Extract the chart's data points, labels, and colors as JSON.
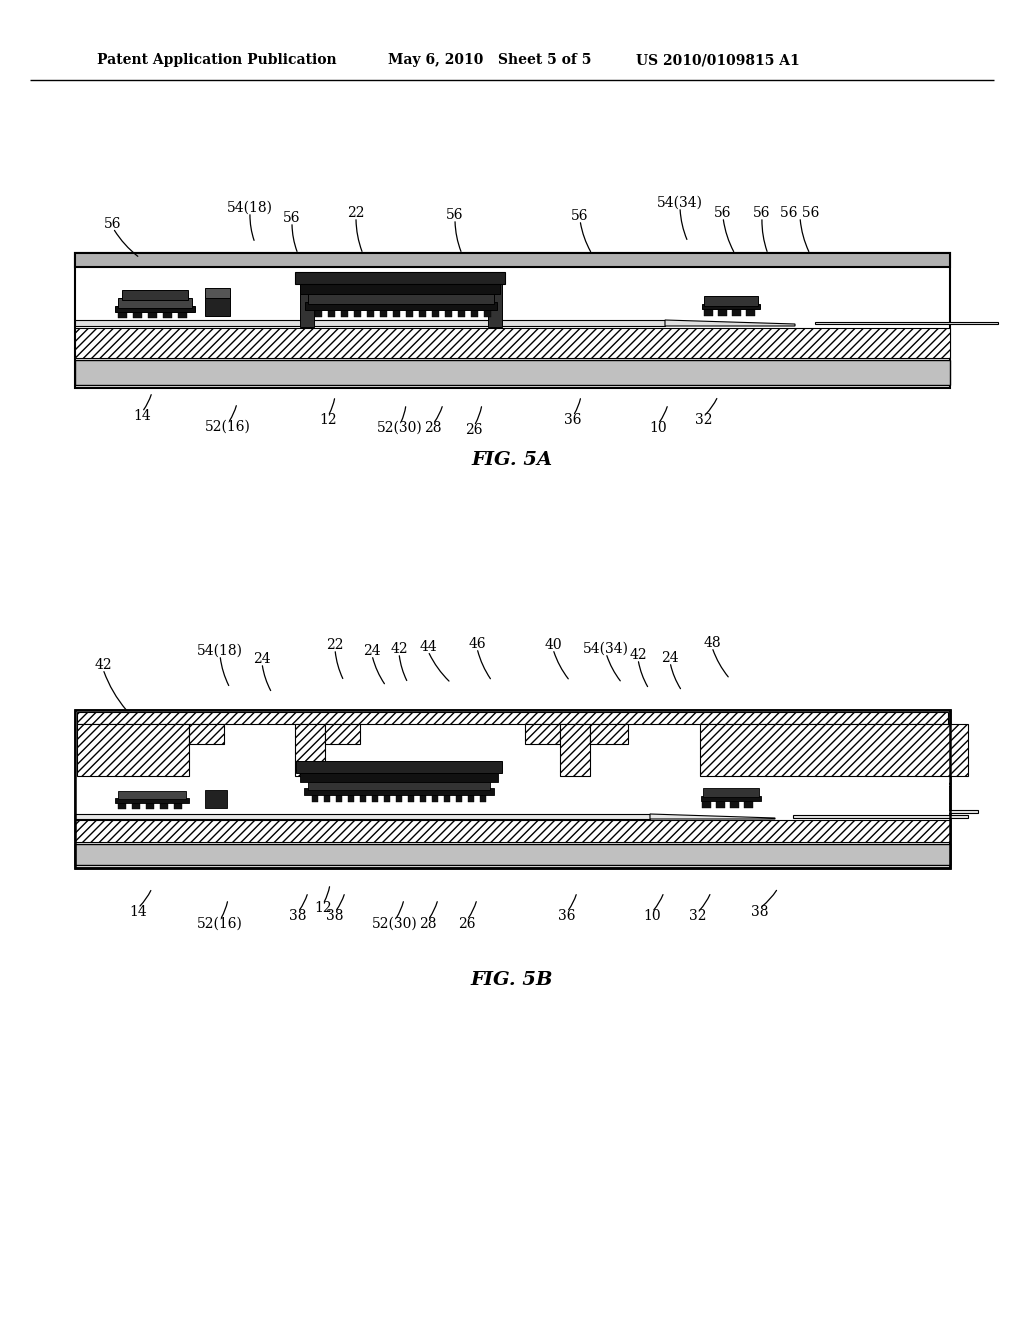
{
  "bg_color": "#ffffff",
  "header_left": "Patent Application Publication",
  "header_mid": "May 6, 2010   Sheet 5 of 5",
  "header_right": "US 2010/0109815 A1",
  "fig5a_label": "FIG. 5A",
  "fig5b_label": "FIG. 5B",
  "text_color": "#000000",
  "fig5a_top_labels": [
    [
      135,
      215,
      155,
      245,
      "56"
    ],
    [
      255,
      200,
      265,
      235,
      "54(18)"
    ],
    [
      295,
      213,
      298,
      244,
      "56"
    ],
    [
      358,
      210,
      362,
      244,
      "22"
    ],
    [
      455,
      213,
      462,
      244,
      "56"
    ],
    [
      586,
      213,
      596,
      244,
      "56"
    ],
    [
      683,
      200,
      690,
      232,
      "54(34)"
    ],
    [
      724,
      210,
      740,
      243,
      "56"
    ],
    [
      762,
      212,
      773,
      243,
      "56 56"
    ]
  ],
  "fig5a_bot_labels": [
    [
      148,
      415,
      162,
      393,
      "14"
    ],
    [
      234,
      427,
      238,
      404,
      "52(16)"
    ],
    [
      330,
      421,
      336,
      398,
      "12"
    ],
    [
      400,
      427,
      406,
      404,
      "52(30)"
    ],
    [
      432,
      427,
      443,
      404,
      "28"
    ],
    [
      473,
      430,
      481,
      406,
      "26"
    ],
    [
      577,
      421,
      587,
      398,
      "36"
    ],
    [
      661,
      427,
      673,
      404,
      "10"
    ],
    [
      706,
      421,
      724,
      398,
      "32"
    ]
  ],
  "fig5b_top_labels": [
    [
      104,
      660,
      126,
      694,
      "42"
    ],
    [
      222,
      648,
      232,
      682,
      "54(18)"
    ],
    [
      263,
      656,
      270,
      690,
      "24"
    ],
    [
      337,
      644,
      345,
      680,
      "22"
    ],
    [
      374,
      651,
      388,
      684,
      "24"
    ],
    [
      400,
      648,
      408,
      682,
      "42"
    ],
    [
      430,
      648,
      452,
      682,
      "44"
    ],
    [
      478,
      644,
      492,
      680,
      "46"
    ],
    [
      555,
      644,
      572,
      680,
      "40"
    ],
    [
      608,
      648,
      624,
      682,
      "54(34)"
    ],
    [
      641,
      655,
      650,
      688,
      "42"
    ],
    [
      672,
      658,
      684,
      690,
      "24"
    ],
    [
      715,
      642,
      732,
      678,
      "48"
    ]
  ],
  "fig5b_bot_labels": [
    [
      140,
      910,
      158,
      886,
      "14"
    ],
    [
      222,
      921,
      230,
      898,
      "52(16)"
    ],
    [
      300,
      914,
      308,
      891,
      "38"
    ],
    [
      337,
      914,
      348,
      891,
      "38"
    ],
    [
      325,
      906,
      332,
      883,
      "12"
    ],
    [
      397,
      921,
      406,
      898,
      "52(30)"
    ],
    [
      430,
      921,
      440,
      898,
      "28"
    ],
    [
      469,
      921,
      478,
      898,
      "26"
    ],
    [
      569,
      914,
      580,
      891,
      "36"
    ],
    [
      654,
      914,
      668,
      891,
      "10"
    ],
    [
      700,
      914,
      714,
      891,
      "32"
    ],
    [
      762,
      910,
      780,
      887,
      "38"
    ]
  ]
}
